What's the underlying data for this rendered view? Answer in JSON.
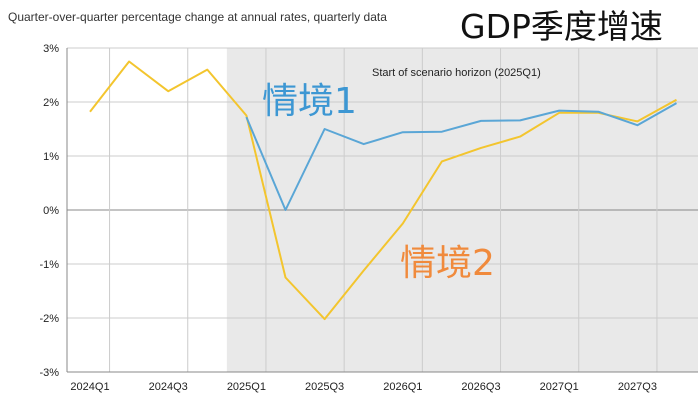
{
  "chart_data": {
    "type": "line",
    "title": "GDP季度增速",
    "subtitle": "Quarter-over-quarter percentage change at annual rates, quarterly data",
    "xlabel": "",
    "ylabel": "",
    "ylim": [
      -3,
      3
    ],
    "y_ticks": [
      3,
      2,
      1,
      0,
      -1,
      -2,
      -3
    ],
    "y_tick_labels": [
      "3%",
      "2%",
      "1%",
      "0%",
      "-1%",
      "-2%",
      "-3%"
    ],
    "x": [
      "2024Q1",
      "2024Q2",
      "2024Q3",
      "2024Q4",
      "2025Q1",
      "2025Q2",
      "2025Q3",
      "2025Q4",
      "2026Q1",
      "2026Q2",
      "2026Q3",
      "2026Q4",
      "2027Q1",
      "2027Q2",
      "2027Q3",
      "2027Q4"
    ],
    "x_tick_labels": [
      "2024Q1",
      "2024Q3",
      "2025Q1",
      "2025Q3",
      "2026Q1",
      "2026Q3",
      "2027Q1",
      "2027Q3"
    ],
    "grid": true,
    "shaded_region": {
      "from": "2025Q1",
      "label": "Start of scenario horizon (2025Q1)"
    },
    "series": [
      {
        "name": "情境1",
        "color": "#5aa6d6",
        "label_color": "#3d97d3",
        "values": [
          null,
          null,
          null,
          null,
          1.72,
          0.0,
          1.5,
          1.22,
          1.44,
          1.45,
          1.65,
          1.66,
          1.84,
          1.82,
          1.57,
          1.98
        ]
      },
      {
        "name": "情境2",
        "color": "#f3c52e",
        "label_color": "#f08a3c",
        "values": [
          1.82,
          2.75,
          2.2,
          2.6,
          1.75,
          -1.25,
          -2.02,
          -1.12,
          -0.25,
          0.9,
          1.15,
          1.36,
          1.8,
          1.8,
          1.64,
          2.04
        ]
      }
    ]
  }
}
